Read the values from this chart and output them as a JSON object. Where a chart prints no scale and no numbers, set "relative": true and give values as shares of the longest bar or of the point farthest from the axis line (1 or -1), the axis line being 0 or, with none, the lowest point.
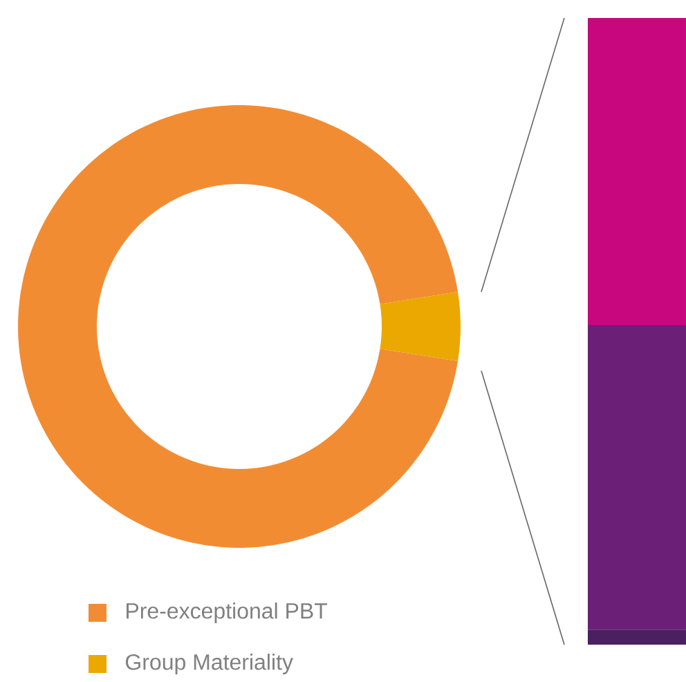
{
  "chart_data": [
    {
      "type": "donut",
      "categories": [
        "Pre-exceptional PBT",
        "Group Materiality"
      ],
      "values": [
        95,
        5
      ],
      "colors": [
        "#f28c33",
        "#eaa800"
      ],
      "legend": "bottom left"
    },
    {
      "type": "bar",
      "stacked": true,
      "relative": true,
      "categories": [
        null
      ],
      "series": [
        {
          "color": "#4a2060",
          "values": [
            0.024
          ]
        },
        {
          "color": "#6b1f77",
          "values": [
            0.486
          ]
        },
        {
          "color": "#c8077f",
          "values": [
            0.49
          ]
        }
      ]
    }
  ]
}
